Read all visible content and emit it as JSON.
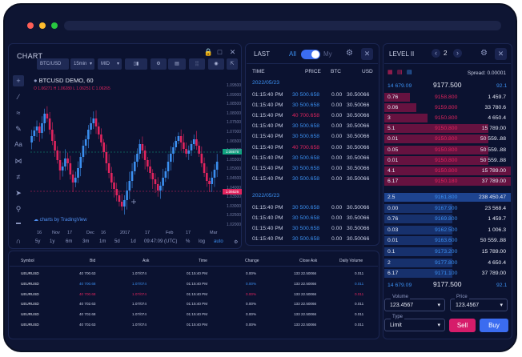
{
  "colors": {
    "red": "#e0245e",
    "blue": "#3b8ff0",
    "bid": "#2f6de0",
    "ask": "#b3124e",
    "bg": "#0b1230",
    "accent": "#3b6cf0"
  },
  "chart": {
    "title": "CHART",
    "symbol_select": "BTC/USD",
    "interval_select": "15min",
    "type_select": "MID",
    "pair": "BTCUSD DEMO, 60",
    "ohlc": "O 1.06271 H 1.06280 L 1.06251 C 1.06265",
    "watermark": "charts by TradingView",
    "price_tag_green": "1.06676",
    "price_tag_red": "1.06626",
    "y_ticks": [
      "1.09500",
      "1.09000",
      "1.08500",
      "1.08000",
      "1.07500",
      "1.07000",
      "1.06500",
      "1.06000",
      "1.05500",
      "1.05000",
      "1.04500",
      "1.04000",
      "1.03500",
      "1.03000",
      "1.02500",
      "1.02000"
    ],
    "x_ticks": [
      "16",
      "Nov",
      "17",
      "Dec",
      "16",
      "2017",
      "17",
      "Feb",
      "17",
      "Mar"
    ],
    "ranges": [
      "5y",
      "1y",
      "6m",
      "3m",
      "1m",
      "5d",
      "1d"
    ],
    "time": "09:47:09 (UTC)",
    "opts": [
      "%",
      "log",
      "auto"
    ]
  },
  "last": {
    "title": "LAST",
    "all": "All",
    "my": "My",
    "headers": [
      "TIME",
      "PRICE",
      "BTC",
      "USD"
    ],
    "groups": [
      {
        "date": "2022/05/23",
        "rows": [
          {
            "time": "01:15:40 PM",
            "price": "30 500.658",
            "btc": "0.00",
            "usd": "30.50066",
            "c": "blue"
          },
          {
            "time": "01:15:40 PM",
            "price": "30 500.658",
            "btc": "0.00",
            "usd": "30.50066",
            "c": "blue"
          },
          {
            "time": "01:15:40 PM",
            "price": "40 700.658",
            "btc": "0.00",
            "usd": "30.50066",
            "c": "red"
          },
          {
            "time": "01:15:40 PM",
            "price": "30 500.658",
            "btc": "0.00",
            "usd": "30.50066",
            "c": "blue"
          },
          {
            "time": "01:15:40 PM",
            "price": "30 500.658",
            "btc": "0.00",
            "usd": "30.50066",
            "c": "blue"
          },
          {
            "time": "01:15:40 PM",
            "price": "40 700.658",
            "btc": "0.00",
            "usd": "30.50066",
            "c": "red"
          },
          {
            "time": "01:15:40 PM",
            "price": "30 500.658",
            "btc": "0.00",
            "usd": "30.50066",
            "c": "blue"
          },
          {
            "time": "01:15:40 PM",
            "price": "30 500.658",
            "btc": "0.00",
            "usd": "30.50066",
            "c": "blue"
          },
          {
            "time": "01:15:40 PM",
            "price": "30 500.658",
            "btc": "0.00",
            "usd": "30.50066",
            "c": "blue"
          }
        ]
      },
      {
        "date": "2022/05/23",
        "rows": [
          {
            "time": "01:15:40 PM",
            "price": "30 500.658",
            "btc": "0.00",
            "usd": "30.50066",
            "c": "blue"
          },
          {
            "time": "01:15:40 PM",
            "price": "30 500.658",
            "btc": "0.00",
            "usd": "30.50066",
            "c": "blue"
          },
          {
            "time": "01:15:40 PM",
            "price": "30 500.658",
            "btc": "0.00",
            "usd": "30.50066",
            "c": "blue"
          },
          {
            "time": "01:15:40 PM",
            "price": "30 500.658",
            "btc": "0.00",
            "usd": "30.50066",
            "c": "blue"
          }
        ]
      }
    ]
  },
  "level2": {
    "title": "LEVEL II",
    "depth": "2",
    "spread": "Spread: 0.00001",
    "top_left": "14 679.09",
    "top_mid": "9177.500",
    "top_right": "92.1",
    "asks": [
      {
        "qty": "0.76",
        "price": "9158.800",
        "size": "1 459.7",
        "fill": 0.2
      },
      {
        "qty": "0.06",
        "price": "9159.800",
        "size": "33 780.6",
        "fill": 0.25
      },
      {
        "qty": "3",
        "price": "9150.800",
        "size": "4 650.4",
        "fill": 0.34
      },
      {
        "qty": "5.1",
        "price": "9150.800",
        "size": "15 789.00",
        "fill": 0.82
      },
      {
        "qty": "0.01",
        "price": "9150.800",
        "size": "50 559..88",
        "fill": 0.82
      },
      {
        "qty": "0.05",
        "price": "9150.800",
        "size": "50 559..88",
        "fill": 0.82
      },
      {
        "qty": "0.01",
        "price": "9150.800",
        "size": "50 559..88",
        "fill": 0.82
      },
      {
        "qty": "4.1",
        "price": "9150.800",
        "size": "15 789.00",
        "fill": 1.0
      },
      {
        "qty": "6.17",
        "price": "9150.180",
        "size": "37 789.00",
        "fill": 1.0
      }
    ],
    "bids": [
      {
        "qty": "2.5",
        "price": "9161.800",
        "size": "238 450.47",
        "fill": 1.0
      },
      {
        "qty": "0.00",
        "price": "9167.900",
        "size": "23 568.4",
        "fill": 0.54
      },
      {
        "qty": "0.76",
        "price": "9169.800",
        "size": "1 459.7",
        "fill": 0.54
      },
      {
        "qty": "0.03",
        "price": "9162.500",
        "size": "1 006.3",
        "fill": 0.54
      },
      {
        "qty": "0.01",
        "price": "9163.600",
        "size": "50 559..88",
        "fill": 0.54
      },
      {
        "qty": "0.1",
        "price": "9173.200",
        "size": "15 789.00",
        "fill": 0.54
      },
      {
        "qty": "2",
        "price": "9177.800",
        "size": "4 650.4",
        "fill": 0.54
      },
      {
        "qty": "6.17",
        "price": "9171.100",
        "size": "37 789.00",
        "fill": 0.54
      }
    ],
    "bottom_left": "14 679.09",
    "bottom_mid": "9177.500",
    "bottom_right": "92.1",
    "volume_label": "Volume",
    "volume_value": "123.4567",
    "price_label": "Price",
    "price_value": "123.4567",
    "type_label": "Type",
    "type_value": "Limit",
    "sell": "Sell",
    "buy": "Buy"
  },
  "table": {
    "headers": [
      "Symbol",
      "Bid",
      "Ask",
      "Time",
      "Change",
      "Close Ask",
      "Daily Volume"
    ],
    "rows": [
      {
        "symbol": "UEURUSD",
        "bid": "40 700.63",
        "ask": "1.07/074",
        "time": "01:15:40 PM",
        "change": "0.00%",
        "close": "133 22.50066",
        "vol": "0.011",
        "c": "white"
      },
      {
        "symbol": "UEURUSD",
        "bid": "40 700.68",
        "ask": "1.07/074",
        "time": "01:15:40 PM",
        "change": "0.00%",
        "close": "133 22.50066",
        "vol": "0.011",
        "c": "blue"
      },
      {
        "symbol": "UEURUSD",
        "bid": "40 700.68",
        "ask": "1.07/074",
        "time": "01:15:40 PM",
        "change": "0.00%",
        "close": "133 22.50066",
        "vol": "0.011",
        "c": "red"
      },
      {
        "symbol": "UEURUSD",
        "bid": "40 702.63",
        "ask": "1.07/074",
        "time": "01:15:40 PM",
        "change": "0.00%",
        "close": "133 22.50066",
        "vol": "0.011",
        "c": "white"
      },
      {
        "symbol": "UEURUSD",
        "bid": "40 702.68",
        "ask": "1.07/074",
        "time": "01:15:40 PM",
        "change": "0.00%",
        "close": "133 22.50066",
        "vol": "0.011",
        "c": "white"
      },
      {
        "symbol": "UEURUSD",
        "bid": "40 702.63",
        "ask": "1.07/074",
        "time": "01:15:40 PM",
        "change": "0.00%",
        "close": "133 22.50066",
        "vol": "0.011",
        "c": "white"
      }
    ]
  }
}
